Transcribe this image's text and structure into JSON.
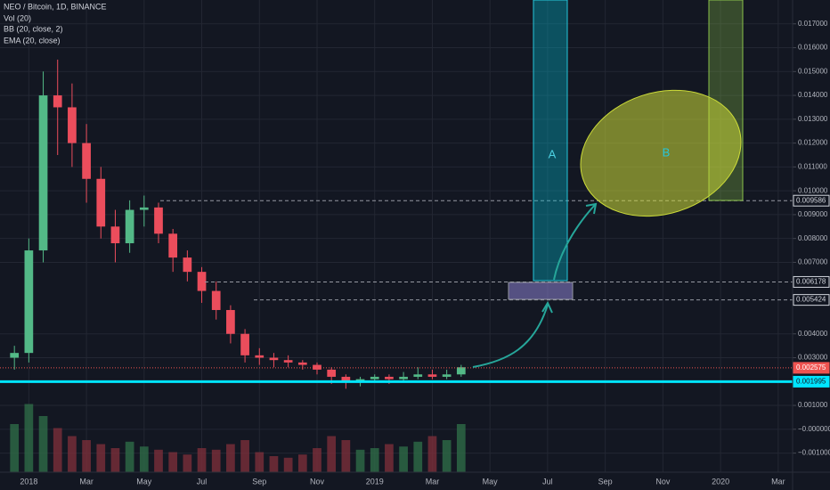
{
  "chart_data": {
    "type": "candlestick",
    "title": "NEO / Bitcoin, 1D, BINANCE",
    "indicators": [
      "Vol (20)",
      "BB (20, close, 2)",
      "EMA (20, close)"
    ],
    "up_color": "#53b987",
    "down_color": "#eb4d5c",
    "volume_color": "#2e6b47",
    "x": [
      -0.5,
      0,
      0.5,
      1,
      1.5,
      2,
      2.5,
      3,
      3.5,
      4,
      4.5,
      5,
      5.5,
      6,
      6.5,
      7,
      7.5,
      8,
      8.5,
      9,
      9.5,
      10,
      10.5,
      11,
      11.5,
      12,
      12.5,
      13,
      13.5,
      14,
      14.5,
      15
    ],
    "open": [
      0.003,
      0.0032,
      0.0075,
      0.014,
      0.0135,
      0.012,
      0.0105,
      0.0085,
      0.0078,
      0.0092,
      0.0093,
      0.0082,
      0.0072,
      0.0066,
      0.0058,
      0.005,
      0.004,
      0.0031,
      0.003,
      0.0029,
      0.0028,
      0.0027,
      0.0025,
      0.0022,
      0.002,
      0.0021,
      0.0022,
      0.0021,
      0.0022,
      0.0023,
      0.0022,
      0.0023
    ],
    "high": [
      0.0035,
      0.008,
      0.015,
      0.0155,
      0.0145,
      0.0128,
      0.011,
      0.0092,
      0.0096,
      0.0098,
      0.0095,
      0.0084,
      0.0075,
      0.0068,
      0.0062,
      0.0052,
      0.0042,
      0.0034,
      0.0032,
      0.0031,
      0.0029,
      0.0028,
      0.0026,
      0.0023,
      0.0022,
      0.0023,
      0.0023,
      0.0024,
      0.0026,
      0.0025,
      0.0025,
      0.0027
    ],
    "low": [
      0.0025,
      0.0028,
      0.007,
      0.0115,
      0.011,
      0.0095,
      0.008,
      0.007,
      0.0074,
      0.0085,
      0.0078,
      0.0066,
      0.0062,
      0.0053,
      0.0046,
      0.0036,
      0.0028,
      0.0027,
      0.0026,
      0.0026,
      0.0025,
      0.0023,
      0.0019,
      0.0017,
      0.0018,
      0.002,
      0.0019,
      0.002,
      0.0021,
      0.0021,
      0.0021,
      0.0022
    ],
    "close": [
      0.0032,
      0.0075,
      0.014,
      0.0135,
      0.012,
      0.0105,
      0.0085,
      0.0078,
      0.0092,
      0.0093,
      0.0082,
      0.0072,
      0.0066,
      0.0058,
      0.005,
      0.004,
      0.0031,
      0.003,
      0.0029,
      0.0028,
      0.0027,
      0.0025,
      0.0022,
      0.002,
      0.0021,
      0.0022,
      0.0021,
      0.0022,
      0.0023,
      0.0022,
      0.0023,
      0.0026
    ],
    "volume": [
      60,
      85,
      70,
      55,
      45,
      40,
      35,
      30,
      38,
      32,
      28,
      25,
      22,
      30,
      28,
      35,
      40,
      25,
      20,
      18,
      22,
      30,
      45,
      40,
      28,
      30,
      35,
      32,
      38,
      45,
      40,
      60
    ],
    "vlim": [
      0,
      100
    ],
    "xlim": [
      -1,
      26.5
    ],
    "xticks": [
      {
        "value": 0,
        "label": "2018"
      },
      {
        "value": 2,
        "label": "Mar"
      },
      {
        "value": 4,
        "label": "May"
      },
      {
        "value": 6,
        "label": "Jul"
      },
      {
        "value": 8,
        "label": "Sep"
      },
      {
        "value": 10,
        "label": "Nov"
      },
      {
        "value": 12,
        "label": "2019"
      },
      {
        "value": 14,
        "label": "Mar"
      },
      {
        "value": 16,
        "label": "May"
      },
      {
        "value": 18,
        "label": "Jul"
      },
      {
        "value": 20,
        "label": "Sep"
      },
      {
        "value": 22,
        "label": "Nov"
      },
      {
        "value": 24,
        "label": "2020"
      },
      {
        "value": 26,
        "label": "Mar"
      }
    ],
    "ylim": [
      -0.0018,
      0.018
    ],
    "yticks": [
      {
        "value": 0.017,
        "label": "0.017000"
      },
      {
        "value": 0.016,
        "label": "0.016000"
      },
      {
        "value": 0.015,
        "label": "0.015000"
      },
      {
        "value": 0.014,
        "label": "0.014000"
      },
      {
        "value": 0.013,
        "label": "0.013000"
      },
      {
        "value": 0.012,
        "label": "0.012000"
      },
      {
        "value": 0.011,
        "label": "0.011000"
      },
      {
        "value": 0.01,
        "label": "0.010000"
      },
      {
        "value": 0.009,
        "label": "0.009000"
      },
      {
        "value": 0.008,
        "label": "0.008000"
      },
      {
        "value": 0.007,
        "label": "0.007000"
      },
      {
        "value": 0.004,
        "label": "0.004000"
      },
      {
        "value": 0.003,
        "label": "0.003000"
      },
      {
        "value": 0.001,
        "label": "0.001000"
      },
      {
        "value": 0,
        "label": "−0.000000"
      },
      {
        "value": -0.001,
        "label": "−0.001000"
      }
    ],
    "grid": true,
    "price_lines": [
      {
        "value": 0.009586,
        "color": "#9598a1",
        "style": "dashed"
      },
      {
        "value": 0.006178,
        "color": "#9598a1",
        "style": "dashed"
      },
      {
        "value": 0.005424,
        "color": "#9598a1",
        "style": "dashed"
      },
      {
        "value": 0.002575,
        "color": "#ef5350",
        "style": "dotted"
      },
      {
        "value": 0.001995,
        "color": "#00e5ff",
        "style": "solid"
      }
    ],
    "annotations": [
      "A",
      "B"
    ]
  }
}
